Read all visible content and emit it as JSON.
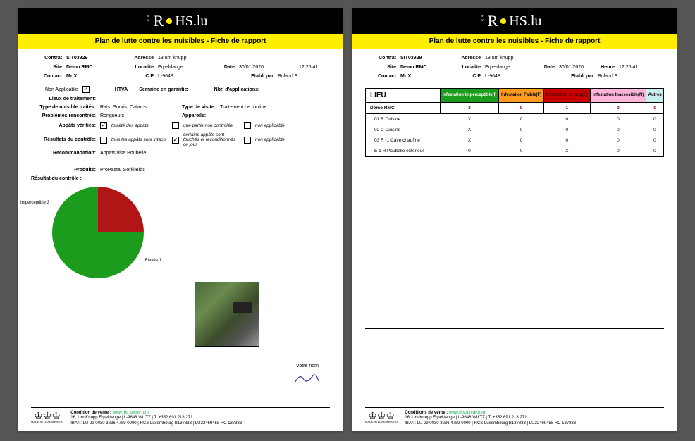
{
  "brand_text": "HS.lu",
  "title": "Plan de lutte contre les nuisibles - Fiche de rapport",
  "page1": {
    "contrat_lbl": "Contrat",
    "contrat": "SIT03929",
    "adresse_lbl": "Adresse",
    "adresse": "18 um knupp",
    "site_lbl": "Site",
    "site": "Demo RMC",
    "localite_lbl": "Localite",
    "localite": "Erpeldange",
    "date_lbl": "Date",
    "date": "30/01/2020",
    "time": "12:25:41",
    "contact_lbl": "Contact",
    "contact": "Mr X",
    "cp_lbl": "C.P",
    "cp": "L-9648",
    "etabli_lbl": "Etabli par",
    "etabli": "Boland E.",
    "na_lbl": "Non Applicable",
    "htva_lbl": "HTVA",
    "semaine_lbl": "Semaine en garantie:",
    "nbr_lbl": "Nbr. d'applications:",
    "lieux_lbl": "Lieux de traitement:",
    "type_nuisible_lbl": "Type de nuisible traités:",
    "type_nuisible": "Rats, Souris, Cafards",
    "type_visite_lbl": "Type de visite:",
    "type_visite": "Traitement de routine",
    "problemes_lbl": "Problèmes rencontrés:",
    "problemes": "Rongueurs",
    "appareils_lbl": "Appareils:",
    "appats_lbl": "Appâts vérifiés:",
    "appats_opt1": "totalité des appâts",
    "appats_opt2": "une partie non contrôlée",
    "appats_opt3": "non applicable",
    "resultats_lbl": "Résultats du contrôle:",
    "res_opt1": "tous les appâts sont intacts",
    "res_opt2": "certains appâts sont touchés et reconditionnés ce jour",
    "res_opt3": "non applicable",
    "recomm_lbl": "Recommandation:",
    "recomm": "Appats vise Poubelle",
    "produits_lbl": "Produits:",
    "produits": "ProPasta, SorkilBloc",
    "resultat_ctrl_lbl": "Résultat du contrôle :",
    "pie": {
      "slices": [
        {
          "label": "Imperceptible 3",
          "value": 3,
          "color": "#1c9c1c"
        },
        {
          "label": "Elevée 1",
          "value": 1,
          "color": "#b01616"
        }
      ]
    },
    "votre_nom": "Votre nom"
  },
  "page2": {
    "heure_lbl": "Heure",
    "lieu_header": "LIEU",
    "cols": [
      {
        "label": "Infestation Imperceptible(I)",
        "bg": "#1c9c1c",
        "fg": "#ffffff"
      },
      {
        "label": "Infestation Faible(F)",
        "bg": "#ff9a1f",
        "fg": "#000000"
      },
      {
        "label": "Infestation Elevée(E)",
        "bg": "#c90000",
        "fg": "#600000"
      },
      {
        "label": "Infestation Inaccesible(N)",
        "bg": "#ffb6d9",
        "fg": "#000000"
      },
      {
        "label": "Autres",
        "bg": "#c9eef0",
        "fg": "#000000"
      }
    ],
    "summary_name": "Demo RMC",
    "summary": [
      "3",
      "0",
      "1",
      "0",
      "0"
    ],
    "rows": [
      {
        "name": "01 R Cuisine",
        "v": [
          "X",
          "0",
          "0",
          "0",
          "0"
        ]
      },
      {
        "name": "02 C Cuisine",
        "v": [
          "X",
          "0",
          "0",
          "0",
          "0"
        ]
      },
      {
        "name": "03 R -1 Cave chauffrie",
        "v": [
          "X",
          "0",
          "0",
          "0",
          "0"
        ]
      },
      {
        "name": "E 1 R Poubelle exterieur",
        "v": [
          "0",
          "0",
          "X",
          "0",
          "0"
        ]
      }
    ]
  },
  "footer": {
    "cond_lbl": "Condition de vente :",
    "cond_lbl2": "Conditions de vente :",
    "cond_link": "www.rhs.lu/cgv.htm",
    "line1": "16, Um Knupp Erpeldange | L-9648 WILTZ | T. +352 691 218 271",
    "line2": "IBAN: LU 29 0030 3236 4789 0000 | RCS Luxembourg B137833 | LU22469458 RC 137833",
    "made": "MADE IN LUXEMBOURG"
  }
}
